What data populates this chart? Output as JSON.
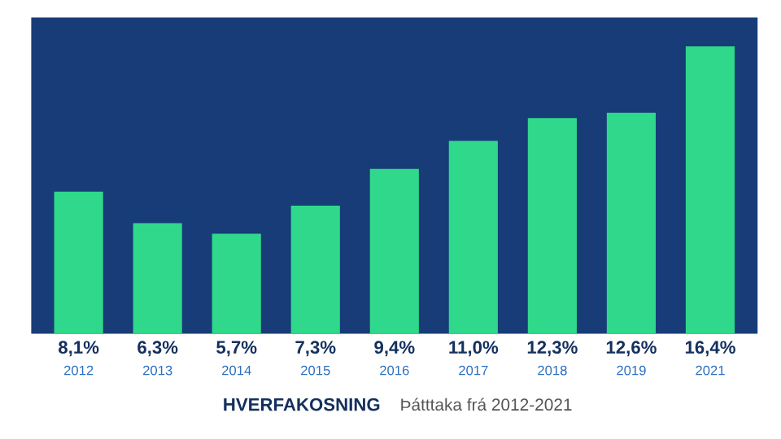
{
  "chart_data": {
    "type": "bar",
    "title": "HVERFAKOSNING",
    "subtitle": "Þátttaka frá 2012-2021",
    "categories": [
      "2012",
      "2013",
      "2014",
      "2015",
      "2016",
      "2017",
      "2018",
      "2019",
      "2021"
    ],
    "values": [
      8.1,
      6.3,
      5.7,
      7.3,
      9.4,
      11.0,
      12.3,
      12.6,
      16.4
    ],
    "value_labels": [
      "8,1%",
      "6,3%",
      "5,7%",
      "7,3%",
      "9,4%",
      "11,0%",
      "12,3%",
      "12,6%",
      "16,4%"
    ],
    "color": "#2fd88a",
    "grid": false
  }
}
